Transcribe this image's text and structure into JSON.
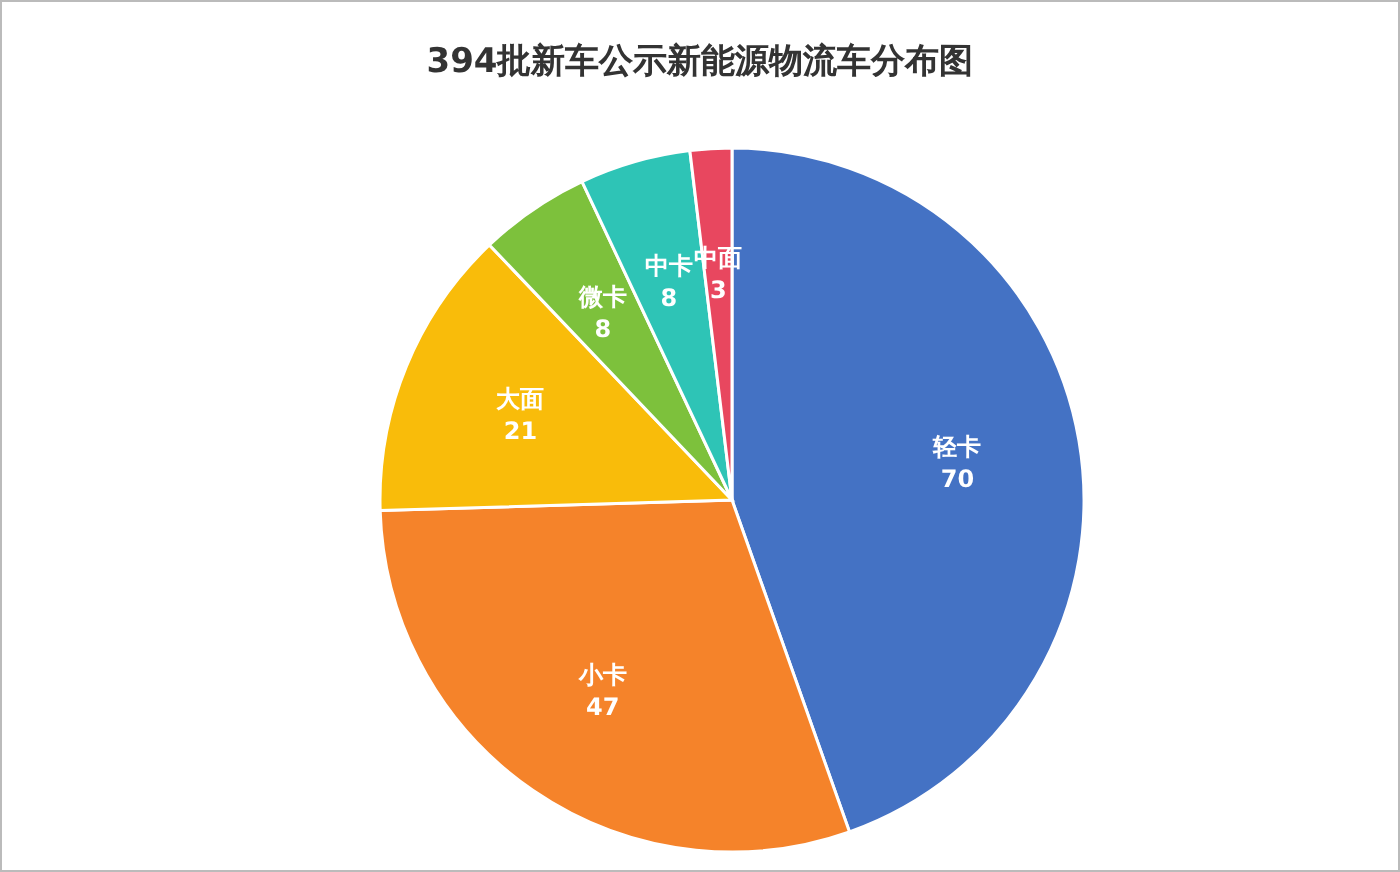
{
  "chart_data": {
    "type": "pie",
    "title": "394批新车公示新能源物流车分布图",
    "categories": [
      "轻卡",
      "小卡",
      "大面",
      "微卡",
      "中卡",
      "中面"
    ],
    "values": [
      70,
      47,
      21,
      8,
      8,
      3
    ],
    "colors": [
      "#4472c4",
      "#f5832a",
      "#f9bc0a",
      "#7dc13c",
      "#2ec4b6",
      "#e8475f"
    ],
    "data_labels": true
  }
}
